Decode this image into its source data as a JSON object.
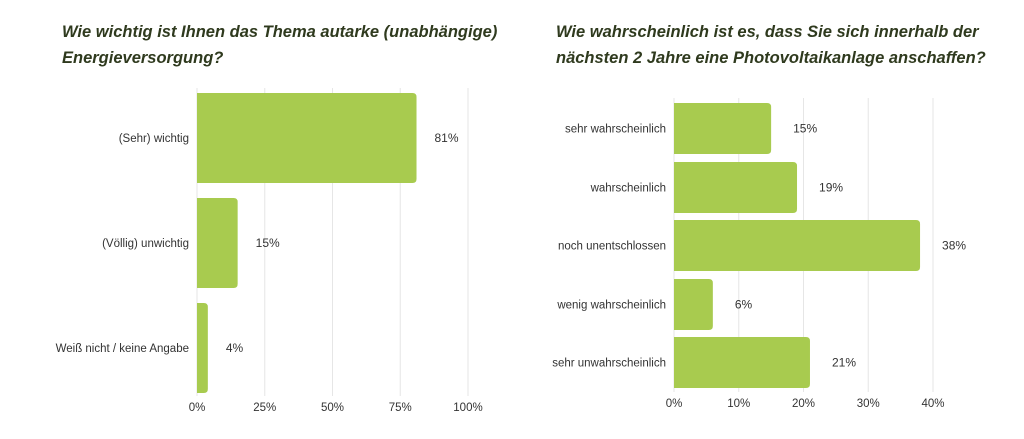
{
  "colors": {
    "bar": "#a8cb4f",
    "grid": "#e6e6e6",
    "title": "#2f3a1e",
    "text": "#333333"
  },
  "chart_data": [
    {
      "type": "bar",
      "orientation": "horizontal",
      "title": "Wie wichtig ist Ihnen das Thema autarke (unabhängige) Energieversorgung?",
      "categories": [
        "(Sehr) wichtig",
        "(Völlig) unwichtig",
        "Weiß nicht / keine Angabe"
      ],
      "values": [
        81,
        15,
        4
      ],
      "value_labels": [
        "81%",
        "15%",
        "4%"
      ],
      "xlim": [
        0,
        100
      ],
      "xticks": [
        0,
        25,
        50,
        75,
        100
      ],
      "xtick_labels": [
        "0%",
        "25%",
        "50%",
        "75%",
        "100%"
      ],
      "grid": true,
      "xlabel": "",
      "ylabel": ""
    },
    {
      "type": "bar",
      "orientation": "horizontal",
      "title": "Wie wahrscheinlich ist es, dass Sie sich innerhalb der nächsten 2 Jahre eine Photovoltaikanlage anschaffen?",
      "categories": [
        "sehr wahrscheinlich",
        "wahrscheinlich",
        "noch unentschlossen",
        "wenig wahrscheinlich",
        "sehr unwahrscheinlich"
      ],
      "values": [
        15,
        19,
        38,
        6,
        21
      ],
      "value_labels": [
        "15%",
        "19%",
        "38%",
        "6%",
        "21%"
      ],
      "xlim": [
        0,
        40
      ],
      "xticks": [
        0,
        10,
        20,
        30,
        40
      ],
      "xtick_labels": [
        "0%",
        "10%",
        "20%",
        "30%",
        "40%"
      ],
      "grid": true,
      "xlabel": "",
      "ylabel": ""
    }
  ]
}
